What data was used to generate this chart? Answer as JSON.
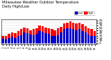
{
  "title": "Milwaukee Weather Outdoor Temperature\nDaily High/Low",
  "title_fontsize": 3.8,
  "bar_width": 0.8,
  "high_color": "#ff0000",
  "low_color": "#0000cc",
  "high_label": "High",
  "low_label": "Low",
  "ylim": [
    -5,
    95
  ],
  "yticks": [
    0,
    10,
    20,
    30,
    40,
    50,
    60,
    70,
    80,
    90
  ],
  "ytick_fontsize": 3.2,
  "xtick_fontsize": 2.8,
  "background_color": "#ffffff",
  "grid_color": "#cccccc",
  "days": [
    "1",
    "2",
    "3",
    "4",
    "5",
    "6",
    "7",
    "8",
    "9",
    "10",
    "11",
    "12",
    "13",
    "14",
    "15",
    "16",
    "17",
    "18",
    "19",
    "20",
    "21",
    "22",
    "23",
    "24",
    "25",
    "26",
    "27",
    "28",
    "29",
    "30",
    "31"
  ],
  "highs": [
    30,
    28,
    38,
    42,
    40,
    48,
    55,
    62,
    58,
    52,
    55,
    60,
    70,
    68,
    62,
    60,
    55,
    52,
    58,
    65,
    78,
    82,
    85,
    80,
    78,
    82,
    75,
    68,
    58,
    55,
    48
  ],
  "lows": [
    18,
    15,
    20,
    25,
    22,
    28,
    32,
    42,
    40,
    35,
    32,
    38,
    48,
    45,
    40,
    36,
    30,
    28,
    32,
    42,
    55,
    58,
    60,
    55,
    50,
    55,
    48,
    42,
    35,
    30,
    28
  ]
}
